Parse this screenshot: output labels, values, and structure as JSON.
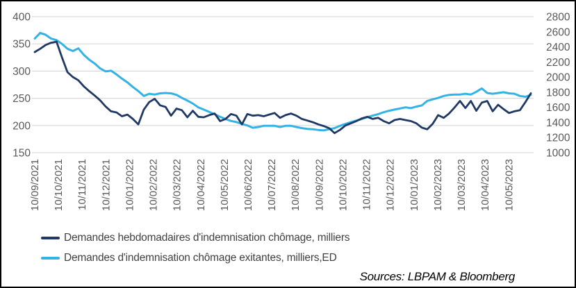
{
  "colors": {
    "dark_series": "#1F3864",
    "cyan_series": "#33B3E5",
    "grid": "#D9D9D9",
    "axis_text": "#595959",
    "legend_text": "#404040",
    "border": "#000000",
    "background": "#FFFFFF"
  },
  "chart_data": {
    "type": "line",
    "title": "",
    "grid": "horizontal",
    "legend_position": "bottom-left",
    "x_tick_labels": [
      "10/09/2021",
      "10/10/2021",
      "10/11/2021",
      "10/12/2021",
      "10/01/2022",
      "10/02/2022",
      "10/03/2022",
      "10/04/2022",
      "10/05/2022",
      "10/06/2022",
      "10/07/2022",
      "10/08/2022",
      "10/09/2022",
      "10/10/2022",
      "10/11/2022",
      "10/12/2022",
      "10/01/2023",
      "10/02/2023",
      "10/03/2023",
      "10/04/2023",
      "10/05/2023"
    ],
    "left_axis": {
      "min": 150,
      "max": 400,
      "step": 50,
      "ticks": [
        400,
        350,
        300,
        250,
        200,
        150
      ]
    },
    "right_axis": {
      "min": 1000,
      "max": 2800,
      "step": 200,
      "ticks": [
        2800,
        2600,
        2400,
        2200,
        2000,
        1800,
        1600,
        1400,
        1200,
        1000
      ]
    },
    "series": [
      {
        "name": "Demandes hebdomadaires d'indemnisation chômage, milliers",
        "axis": "left",
        "color": "#1F3864",
        "values": [
          335,
          341,
          348,
          352,
          354,
          325,
          298,
          289,
          283,
          272,
          263,
          255,
          246,
          235,
          226,
          224,
          217,
          220,
          212,
          202,
          229,
          243,
          249,
          237,
          234,
          218,
          231,
          228,
          215,
          227,
          216,
          215,
          219,
          222,
          208,
          212,
          221,
          218,
          202,
          221,
          218,
          219,
          217,
          220,
          223,
          214,
          219,
          222,
          218,
          212,
          209,
          206,
          202,
          199,
          195,
          186,
          192,
          200,
          204,
          208,
          213,
          216,
          212,
          214,
          208,
          204,
          210,
          212,
          210,
          208,
          204,
          196,
          193,
          203,
          219,
          214,
          222,
          233,
          245,
          232,
          245,
          227,
          242,
          245,
          226,
          238,
          230,
          223,
          226,
          228,
          243,
          259
        ]
      },
      {
        "name": "Demandes d'indemnisation chômage exitantes, milliers,ED",
        "axis": "right",
        "color": "#33B3E5",
        "values": [
          2510,
          2585,
          2560,
          2510,
          2490,
          2440,
          2375,
          2345,
          2380,
          2295,
          2230,
          2180,
          2115,
          2075,
          2085,
          2035,
          1980,
          1930,
          1870,
          1815,
          1750,
          1780,
          1770,
          1785,
          1790,
          1785,
          1765,
          1725,
          1690,
          1650,
          1600,
          1570,
          1540,
          1510,
          1475,
          1445,
          1420,
          1405,
          1380,
          1360,
          1330,
          1340,
          1355,
          1355,
          1355,
          1340,
          1355,
          1355,
          1340,
          1325,
          1315,
          1310,
          1300,
          1295,
          1310,
          1325,
          1355,
          1380,
          1405,
          1425,
          1445,
          1470,
          1490,
          1510,
          1535,
          1555,
          1570,
          1585,
          1600,
          1590,
          1610,
          1625,
          1685,
          1705,
          1725,
          1750,
          1765,
          1770,
          1770,
          1780,
          1770,
          1805,
          1850,
          1790,
          1780,
          1790,
          1800,
          1785,
          1780,
          1750,
          1740,
          1765
        ]
      }
    ]
  },
  "source": {
    "text": "Sources: LBPAM & Bloomberg"
  }
}
